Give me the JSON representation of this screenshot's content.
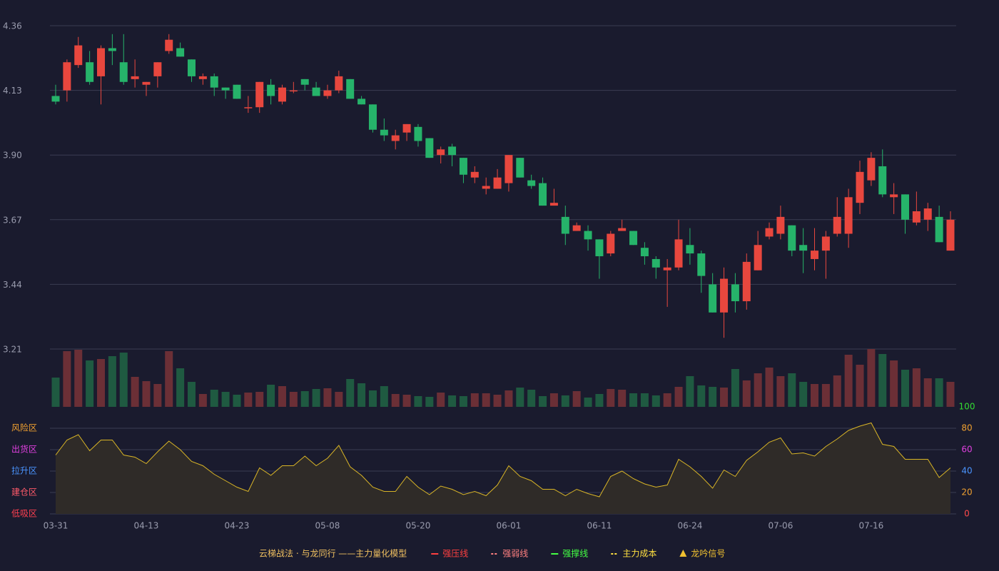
{
  "chart_data": [
    {
      "type": "candlestick",
      "categories": [
        "03-31",
        null,
        null,
        null,
        null,
        null,
        null,
        null,
        "04-13",
        null,
        null,
        null,
        null,
        null,
        null,
        null,
        "04-23",
        null,
        null,
        null,
        null,
        null,
        null,
        null,
        "05-08",
        null,
        null,
        null,
        null,
        null,
        null,
        null,
        "05-20",
        null,
        null,
        null,
        null,
        null,
        null,
        null,
        "06-01",
        null,
        null,
        null,
        null,
        null,
        null,
        null,
        "06-11",
        null,
        null,
        null,
        null,
        null,
        null,
        null,
        "06-24",
        null,
        null,
        null,
        null,
        null,
        null,
        null,
        "07-06",
        null,
        null,
        null,
        null,
        null,
        null,
        null,
        "07-16",
        null,
        null,
        null,
        null,
        null,
        null,
        null
      ],
      "open": [
        4.11,
        4.13,
        4.22,
        4.23,
        4.18,
        4.28,
        4.23,
        4.17,
        4.15,
        4.18,
        4.27,
        4.28,
        4.24,
        4.17,
        4.18,
        4.14,
        4.15,
        4.07,
        4.07,
        4.15,
        4.09,
        4.13,
        4.17,
        4.14,
        4.11,
        4.13,
        4.17,
        4.1,
        4.08,
        3.99,
        3.95,
        3.98,
        4.0,
        3.96,
        3.9,
        3.93,
        3.89,
        3.82,
        3.78,
        3.78,
        3.8,
        3.89,
        3.81,
        3.8,
        3.72,
        3.68,
        3.63,
        3.63,
        3.6,
        3.55,
        3.63,
        3.63,
        3.57,
        3.53,
        3.49,
        3.5,
        3.58,
        3.55,
        3.44,
        3.34,
        3.44,
        3.38,
        3.49,
        3.61,
        3.62,
        3.65,
        3.58,
        3.53,
        3.56,
        3.62,
        3.62,
        3.73,
        3.81,
        3.86,
        3.75,
        3.76,
        3.66,
        3.67,
        3.68,
        3.56
      ],
      "high": [
        4.15,
        4.24,
        4.32,
        4.27,
        4.29,
        4.33,
        4.33,
        4.24,
        4.16,
        4.23,
        4.33,
        4.3,
        4.24,
        4.19,
        4.19,
        4.14,
        4.15,
        4.11,
        4.16,
        4.17,
        4.15,
        4.16,
        4.17,
        4.16,
        4.15,
        4.2,
        4.17,
        4.11,
        4.08,
        4.03,
        3.99,
        4.01,
        4.01,
        3.96,
        3.93,
        3.94,
        3.89,
        3.86,
        3.82,
        3.85,
        3.9,
        3.89,
        3.83,
        3.82,
        3.78,
        3.72,
        3.66,
        3.65,
        3.6,
        3.63,
        3.67,
        3.63,
        3.59,
        3.54,
        3.53,
        3.67,
        3.64,
        3.56,
        3.48,
        3.5,
        3.48,
        3.55,
        3.63,
        3.66,
        3.72,
        3.65,
        3.64,
        3.64,
        3.63,
        3.75,
        3.78,
        3.88,
        3.91,
        3.92,
        3.8,
        3.76,
        3.77,
        3.73,
        3.72,
        3.7
      ],
      "low": [
        4.08,
        4.09,
        4.21,
        4.15,
        4.08,
        4.22,
        4.15,
        4.14,
        4.11,
        4.14,
        4.26,
        4.25,
        4.16,
        4.15,
        4.11,
        4.1,
        4.1,
        4.05,
        4.05,
        4.08,
        4.08,
        4.12,
        4.13,
        4.11,
        4.1,
        4.12,
        4.1,
        4.08,
        3.98,
        3.95,
        3.92,
        3.95,
        3.93,
        3.89,
        3.87,
        3.86,
        3.8,
        3.8,
        3.76,
        3.78,
        3.77,
        3.82,
        3.78,
        3.72,
        3.72,
        3.58,
        3.63,
        3.56,
        3.46,
        3.54,
        3.63,
        3.58,
        3.51,
        3.46,
        3.36,
        3.49,
        3.51,
        3.41,
        3.34,
        3.25,
        3.34,
        3.35,
        3.49,
        3.6,
        3.6,
        3.54,
        3.48,
        3.49,
        3.46,
        3.61,
        3.57,
        3.69,
        3.79,
        3.75,
        3.69,
        3.62,
        3.65,
        3.63,
        3.59,
        3.56
      ],
      "close": [
        4.09,
        4.23,
        4.29,
        4.16,
        4.28,
        4.27,
        4.16,
        4.18,
        4.16,
        4.23,
        4.31,
        4.25,
        4.18,
        4.18,
        4.14,
        4.13,
        4.1,
        4.07,
        4.16,
        4.11,
        4.14,
        4.13,
        4.15,
        4.11,
        4.13,
        4.18,
        4.1,
        4.08,
        3.99,
        3.97,
        3.97,
        4.01,
        3.95,
        3.89,
        3.92,
        3.9,
        3.83,
        3.84,
        3.79,
        3.82,
        3.9,
        3.82,
        3.79,
        3.72,
        3.73,
        3.62,
        3.65,
        3.6,
        3.54,
        3.62,
        3.64,
        3.58,
        3.54,
        3.5,
        3.5,
        3.6,
        3.55,
        3.47,
        3.34,
        3.46,
        3.38,
        3.52,
        3.58,
        3.64,
        3.68,
        3.56,
        3.56,
        3.56,
        3.61,
        3.68,
        3.75,
        3.84,
        3.89,
        3.76,
        3.76,
        3.67,
        3.7,
        3.71,
        3.59,
        3.67
      ],
      "up_color": "#e8473e",
      "down_color": "#26b36a",
      "ylim": [
        3.21,
        4.36
      ],
      "yticks": [
        3.21,
        3.44,
        3.67,
        {
          "value": 3.9,
          "label": "3.90"
        },
        4.13,
        4.36
      ],
      "grid": true
    },
    {
      "type": "bar",
      "values": [
        41,
        78,
        80,
        65,
        67,
        71,
        76,
        42,
        36,
        32,
        78,
        54,
        35,
        18,
        24,
        21,
        17,
        20,
        21,
        31,
        29,
        21,
        22,
        25,
        26,
        21,
        39,
        33,
        23,
        29,
        18,
        17,
        15,
        14,
        20,
        16,
        15,
        19,
        19,
        17,
        23,
        27,
        24,
        15,
        19,
        16,
        22,
        13,
        18,
        25,
        24,
        19,
        19,
        16,
        19,
        28,
        43,
        30,
        28,
        27,
        53,
        37,
        47,
        55,
        43,
        47,
        35,
        32,
        32,
        44,
        73,
        59,
        81,
        74,
        65,
        52,
        54,
        40,
        40,
        35
      ],
      "up_color": "#6b2f36",
      "down_color": "#1f5a41"
    },
    {
      "type": "area",
      "values": [
        55,
        69,
        74,
        59,
        69,
        69,
        55,
        53,
        47,
        58,
        68,
        60,
        49,
        45,
        37,
        31,
        25,
        21,
        43,
        36,
        45,
        45,
        54,
        45,
        52,
        64,
        44,
        36,
        25,
        21,
        21,
        35,
        25,
        18,
        26,
        23,
        18,
        21,
        17,
        27,
        45,
        35,
        31,
        23,
        23,
        17,
        23,
        19,
        16,
        35,
        40,
        33,
        28,
        25,
        27,
        51,
        44,
        35,
        24,
        41,
        35,
        50,
        58,
        67,
        71,
        56,
        57,
        54,
        63,
        70,
        78,
        82,
        85,
        65,
        63,
        51,
        51,
        51,
        34,
        43
      ],
      "color": "#d9b526",
      "fill": "#2f2b28",
      "ylim": [
        0,
        100
      ],
      "yticks": [
        0,
        20,
        40,
        60,
        80,
        100
      ],
      "ytick_colors": [
        "#ff4a4a",
        "#f0a030",
        "#4a94ff",
        "#e040e0",
        "#f0a030",
        "#33dd33"
      ],
      "zones": [
        {
          "label": "风险区",
          "value": 80,
          "color": "#f0a030"
        },
        {
          "label": "出货区",
          "value": 60,
          "color": "#e040e0"
        },
        {
          "label": "拉升区",
          "value": 40,
          "color": "#4a94ff"
        },
        {
          "label": "建仓区",
          "value": 20,
          "color": "#ff5a6a"
        },
        {
          "label": "低吸区",
          "value": 0,
          "color": "#ff4050"
        }
      ]
    }
  ],
  "legend": {
    "caption": "云梯战法 · 与龙同行 ——主力量化模型",
    "caption_color": "#f0c060",
    "items": [
      {
        "name": "强压线",
        "color": "#ff4040",
        "style": "solid"
      },
      {
        "name": "强弱线",
        "color": "#ff8080",
        "style": "dashed"
      },
      {
        "name": "强撑线",
        "color": "#44ff44",
        "style": "solid"
      },
      {
        "name": "主力成本",
        "color": "#ffe040",
        "style": "dashed"
      },
      {
        "name": "龙吟信号",
        "color": "#f0c030",
        "style": "triangle"
      }
    ]
  }
}
